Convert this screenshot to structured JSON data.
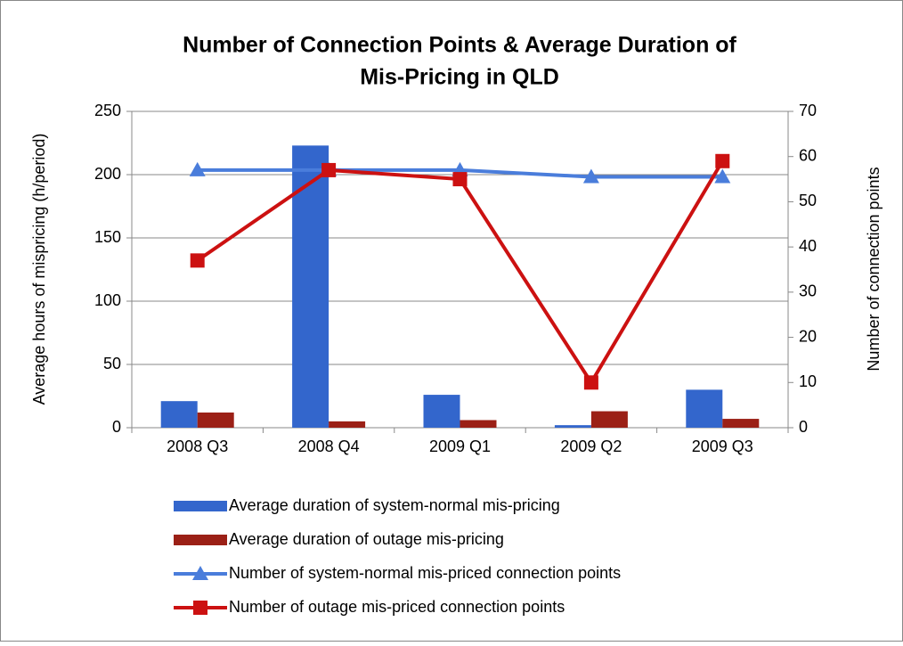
{
  "chart_data": {
    "type": "bar_line",
    "title": [
      "Number of Connection Points & Average Duration of",
      "Mis-Pricing in QLD"
    ],
    "ylabel": "Average hours of mispricing (h/period)",
    "y2label": "Number of connection points",
    "categories": [
      "2008 Q3",
      "2008 Q4",
      "2009 Q1",
      "2009 Q2",
      "2009 Q3"
    ],
    "ylim": [
      0,
      250
    ],
    "yticks": [
      0,
      50,
      100,
      150,
      200,
      250
    ],
    "y2lim": [
      0,
      70
    ],
    "y2ticks": [
      0,
      10,
      20,
      30,
      40,
      50,
      60,
      70
    ],
    "grid": true,
    "series": [
      {
        "name": "Average duration of system-normal mis-pricing",
        "type": "bar",
        "color": "#3366cc",
        "values": [
          21,
          223,
          26,
          2,
          30
        ]
      },
      {
        "name": "Average duration of outage mis-pricing",
        "type": "bar",
        "color": "#9b2016",
        "values": [
          12,
          5,
          6,
          13,
          7
        ]
      },
      {
        "name": "Number of system-normal mis-priced connection points",
        "type": "line",
        "axis": "y2",
        "marker": "triangle",
        "color": "#4a7ddb",
        "values": [
          57,
          57,
          57,
          55.5,
          55.5
        ]
      },
      {
        "name": "Number of outage mis-priced connection points",
        "type": "line",
        "axis": "y2",
        "marker": "square",
        "color": "#cc1111",
        "values": [
          37,
          57,
          55,
          10,
          59
        ]
      }
    ]
  }
}
